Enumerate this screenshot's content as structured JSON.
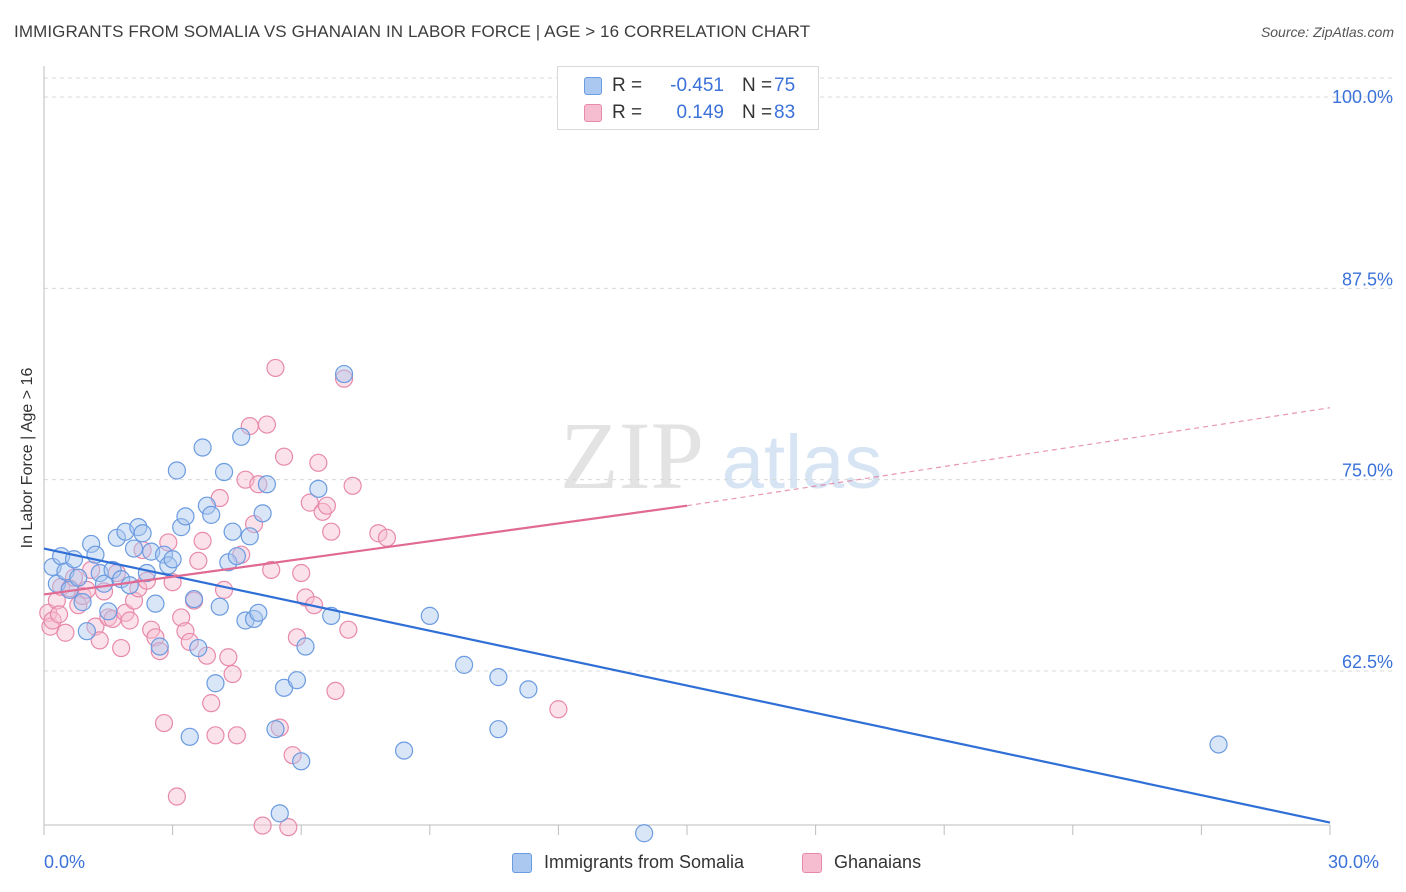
{
  "title": "IMMIGRANTS FROM SOMALIA VS GHANAIAN IN LABOR FORCE | AGE > 16 CORRELATION CHART",
  "source": "Source: ZipAtlas.com",
  "watermark": {
    "zip": "ZIP",
    "atlas": "atlas"
  },
  "legend": {
    "rows": [
      {
        "r_label": "R =",
        "r_value": "-0.451",
        "n_label": "N =",
        "n_value": "75"
      },
      {
        "r_label": "R =",
        "r_value": "0.149",
        "n_label": "N =",
        "n_value": "83"
      }
    ]
  },
  "bottom_legend": [
    "Immigrants from Somalia",
    "Ghanaians"
  ],
  "x_tick_labels": {
    "left": "0.0%",
    "right": "30.0%"
  },
  "colors": {
    "blue_fill": "#aac8f0",
    "blue_stroke": "#6b9be0",
    "blue_line": "#2f6fd6",
    "pink_fill": "#f6bcd0",
    "pink_stroke": "#e88aab",
    "pink_line": "#e06a93",
    "axis_text": "#3b72d9"
  },
  "chart_data": {
    "type": "scatter",
    "title": "IMMIGRANTS FROM SOMALIA VS GHANAIAN IN LABOR FORCE | AGE > 16 CORRELATION CHART",
    "xlabel": "",
    "ylabel": "In Labor Force | Age > 16",
    "xlim": [
      0,
      30
    ],
    "ylim": [
      51.5,
      101
    ],
    "y_ticks": [
      62.5,
      75.0,
      87.5,
      100.0
    ],
    "y_tick_labels": [
      "62.5%",
      "75.0%",
      "87.5%",
      "100.0%"
    ],
    "grid": "horizontal dashed",
    "legend_position": "top-center",
    "series": [
      {
        "name": "Immigrants from Somalia",
        "r": -0.451,
        "n": 75,
        "trend": {
          "x": [
            0,
            30
          ],
          "y": [
            70.5,
            52.6
          ]
        },
        "points": [
          [
            0.2,
            69.3
          ],
          [
            0.3,
            68.2
          ],
          [
            0.4,
            70.0
          ],
          [
            0.5,
            69.0
          ],
          [
            0.6,
            67.8
          ],
          [
            0.7,
            69.8
          ],
          [
            0.8,
            68.6
          ],
          [
            0.9,
            67.0
          ],
          [
            1.0,
            65.1
          ],
          [
            1.1,
            70.8
          ],
          [
            1.2,
            70.1
          ],
          [
            1.3,
            68.9
          ],
          [
            1.4,
            68.2
          ],
          [
            1.5,
            66.4
          ],
          [
            1.6,
            69.1
          ],
          [
            1.7,
            71.2
          ],
          [
            1.8,
            68.5
          ],
          [
            1.9,
            71.6
          ],
          [
            2.0,
            68.1
          ],
          [
            2.1,
            70.5
          ],
          [
            2.2,
            71.9
          ],
          [
            2.3,
            71.5
          ],
          [
            2.4,
            68.9
          ],
          [
            2.5,
            70.3
          ],
          [
            2.6,
            66.9
          ],
          [
            2.7,
            64.1
          ],
          [
            2.8,
            70.1
          ],
          [
            2.9,
            69.4
          ],
          [
            3.0,
            69.8
          ],
          [
            3.1,
            75.6
          ],
          [
            3.2,
            71.9
          ],
          [
            3.3,
            72.6
          ],
          [
            3.4,
            58.2
          ],
          [
            3.5,
            67.2
          ],
          [
            3.6,
            64.0
          ],
          [
            3.7,
            77.1
          ],
          [
            3.8,
            73.3
          ],
          [
            3.9,
            72.7
          ],
          [
            4.0,
            61.7
          ],
          [
            4.1,
            66.7
          ],
          [
            4.2,
            75.5
          ],
          [
            4.3,
            69.6
          ],
          [
            4.4,
            71.6
          ],
          [
            4.5,
            70.0
          ],
          [
            4.6,
            77.8
          ],
          [
            4.7,
            65.8
          ],
          [
            4.8,
            71.3
          ],
          [
            4.9,
            65.9
          ],
          [
            5.0,
            66.3
          ],
          [
            5.1,
            72.8
          ],
          [
            5.2,
            74.7
          ],
          [
            5.4,
            58.7
          ],
          [
            5.5,
            53.2
          ],
          [
            5.6,
            61.4
          ],
          [
            5.9,
            61.9
          ],
          [
            6.0,
            56.6
          ],
          [
            6.1,
            64.1
          ],
          [
            6.4,
            74.4
          ],
          [
            6.7,
            66.1
          ],
          [
            7.0,
            81.9
          ],
          [
            8.4,
            57.3
          ],
          [
            9.0,
            66.1
          ],
          [
            9.8,
            62.9
          ],
          [
            10.6,
            62.1
          ],
          [
            10.6,
            58.7
          ],
          [
            11.3,
            61.3
          ],
          [
            14.0,
            51.9
          ],
          [
            27.4,
            57.7
          ]
        ]
      },
      {
        "name": "Ghanaians",
        "r": 0.149,
        "n": 83,
        "trend": {
          "x": [
            0,
            15
          ],
          "y": [
            67.5,
            73.3
          ]
        },
        "trend_dashed": {
          "x": [
            15,
            30
          ],
          "y": [
            73.3,
            79.7
          ]
        },
        "points": [
          [
            0.1,
            66.3
          ],
          [
            0.15,
            65.4
          ],
          [
            0.2,
            65.8
          ],
          [
            0.3,
            67.1
          ],
          [
            0.35,
            66.2
          ],
          [
            0.4,
            68.0
          ],
          [
            0.5,
            65.0
          ],
          [
            0.6,
            67.9
          ],
          [
            0.7,
            68.6
          ],
          [
            0.8,
            66.8
          ],
          [
            0.9,
            67.4
          ],
          [
            1.0,
            67.8
          ],
          [
            1.1,
            69.1
          ],
          [
            1.2,
            65.4
          ],
          [
            1.3,
            64.5
          ],
          [
            1.4,
            67.7
          ],
          [
            1.5,
            66.0
          ],
          [
            1.6,
            65.9
          ],
          [
            1.7,
            68.9
          ],
          [
            1.8,
            64.0
          ],
          [
            1.9,
            66.3
          ],
          [
            2.0,
            65.8
          ],
          [
            2.1,
            67.1
          ],
          [
            2.2,
            67.9
          ],
          [
            2.3,
            70.4
          ],
          [
            2.4,
            68.4
          ],
          [
            2.5,
            65.2
          ],
          [
            2.6,
            64.7
          ],
          [
            2.7,
            63.8
          ],
          [
            2.8,
            59.1
          ],
          [
            2.9,
            70.9
          ],
          [
            3.0,
            68.3
          ],
          [
            3.1,
            54.3
          ],
          [
            3.2,
            66.0
          ],
          [
            3.3,
            65.1
          ],
          [
            3.4,
            64.4
          ],
          [
            3.5,
            67.1
          ],
          [
            3.6,
            69.7
          ],
          [
            3.7,
            71.0
          ],
          [
            3.8,
            63.5
          ],
          [
            3.9,
            60.4
          ],
          [
            4.0,
            58.3
          ],
          [
            4.1,
            73.8
          ],
          [
            4.2,
            67.8
          ],
          [
            4.3,
            63.4
          ],
          [
            4.4,
            62.3
          ],
          [
            4.5,
            58.3
          ],
          [
            4.6,
            70.1
          ],
          [
            4.7,
            75.0
          ],
          [
            4.8,
            78.5
          ],
          [
            4.9,
            72.1
          ],
          [
            5.0,
            74.7
          ],
          [
            5.1,
            52.4
          ],
          [
            5.2,
            78.6
          ],
          [
            5.3,
            69.1
          ],
          [
            5.4,
            82.3
          ],
          [
            5.5,
            58.8
          ],
          [
            5.6,
            76.5
          ],
          [
            5.7,
            52.3
          ],
          [
            5.8,
            57.0
          ],
          [
            5.9,
            64.7
          ],
          [
            6.0,
            68.9
          ],
          [
            6.1,
            67.3
          ],
          [
            6.2,
            73.5
          ],
          [
            6.3,
            66.8
          ],
          [
            6.4,
            76.1
          ],
          [
            6.5,
            72.9
          ],
          [
            6.6,
            73.3
          ],
          [
            6.7,
            71.6
          ],
          [
            6.8,
            61.2
          ],
          [
            7.0,
            81.6
          ],
          [
            7.1,
            65.2
          ],
          [
            7.2,
            74.6
          ],
          [
            7.8,
            71.5
          ],
          [
            8.0,
            71.2
          ],
          [
            12.0,
            60.0
          ]
        ]
      }
    ]
  }
}
